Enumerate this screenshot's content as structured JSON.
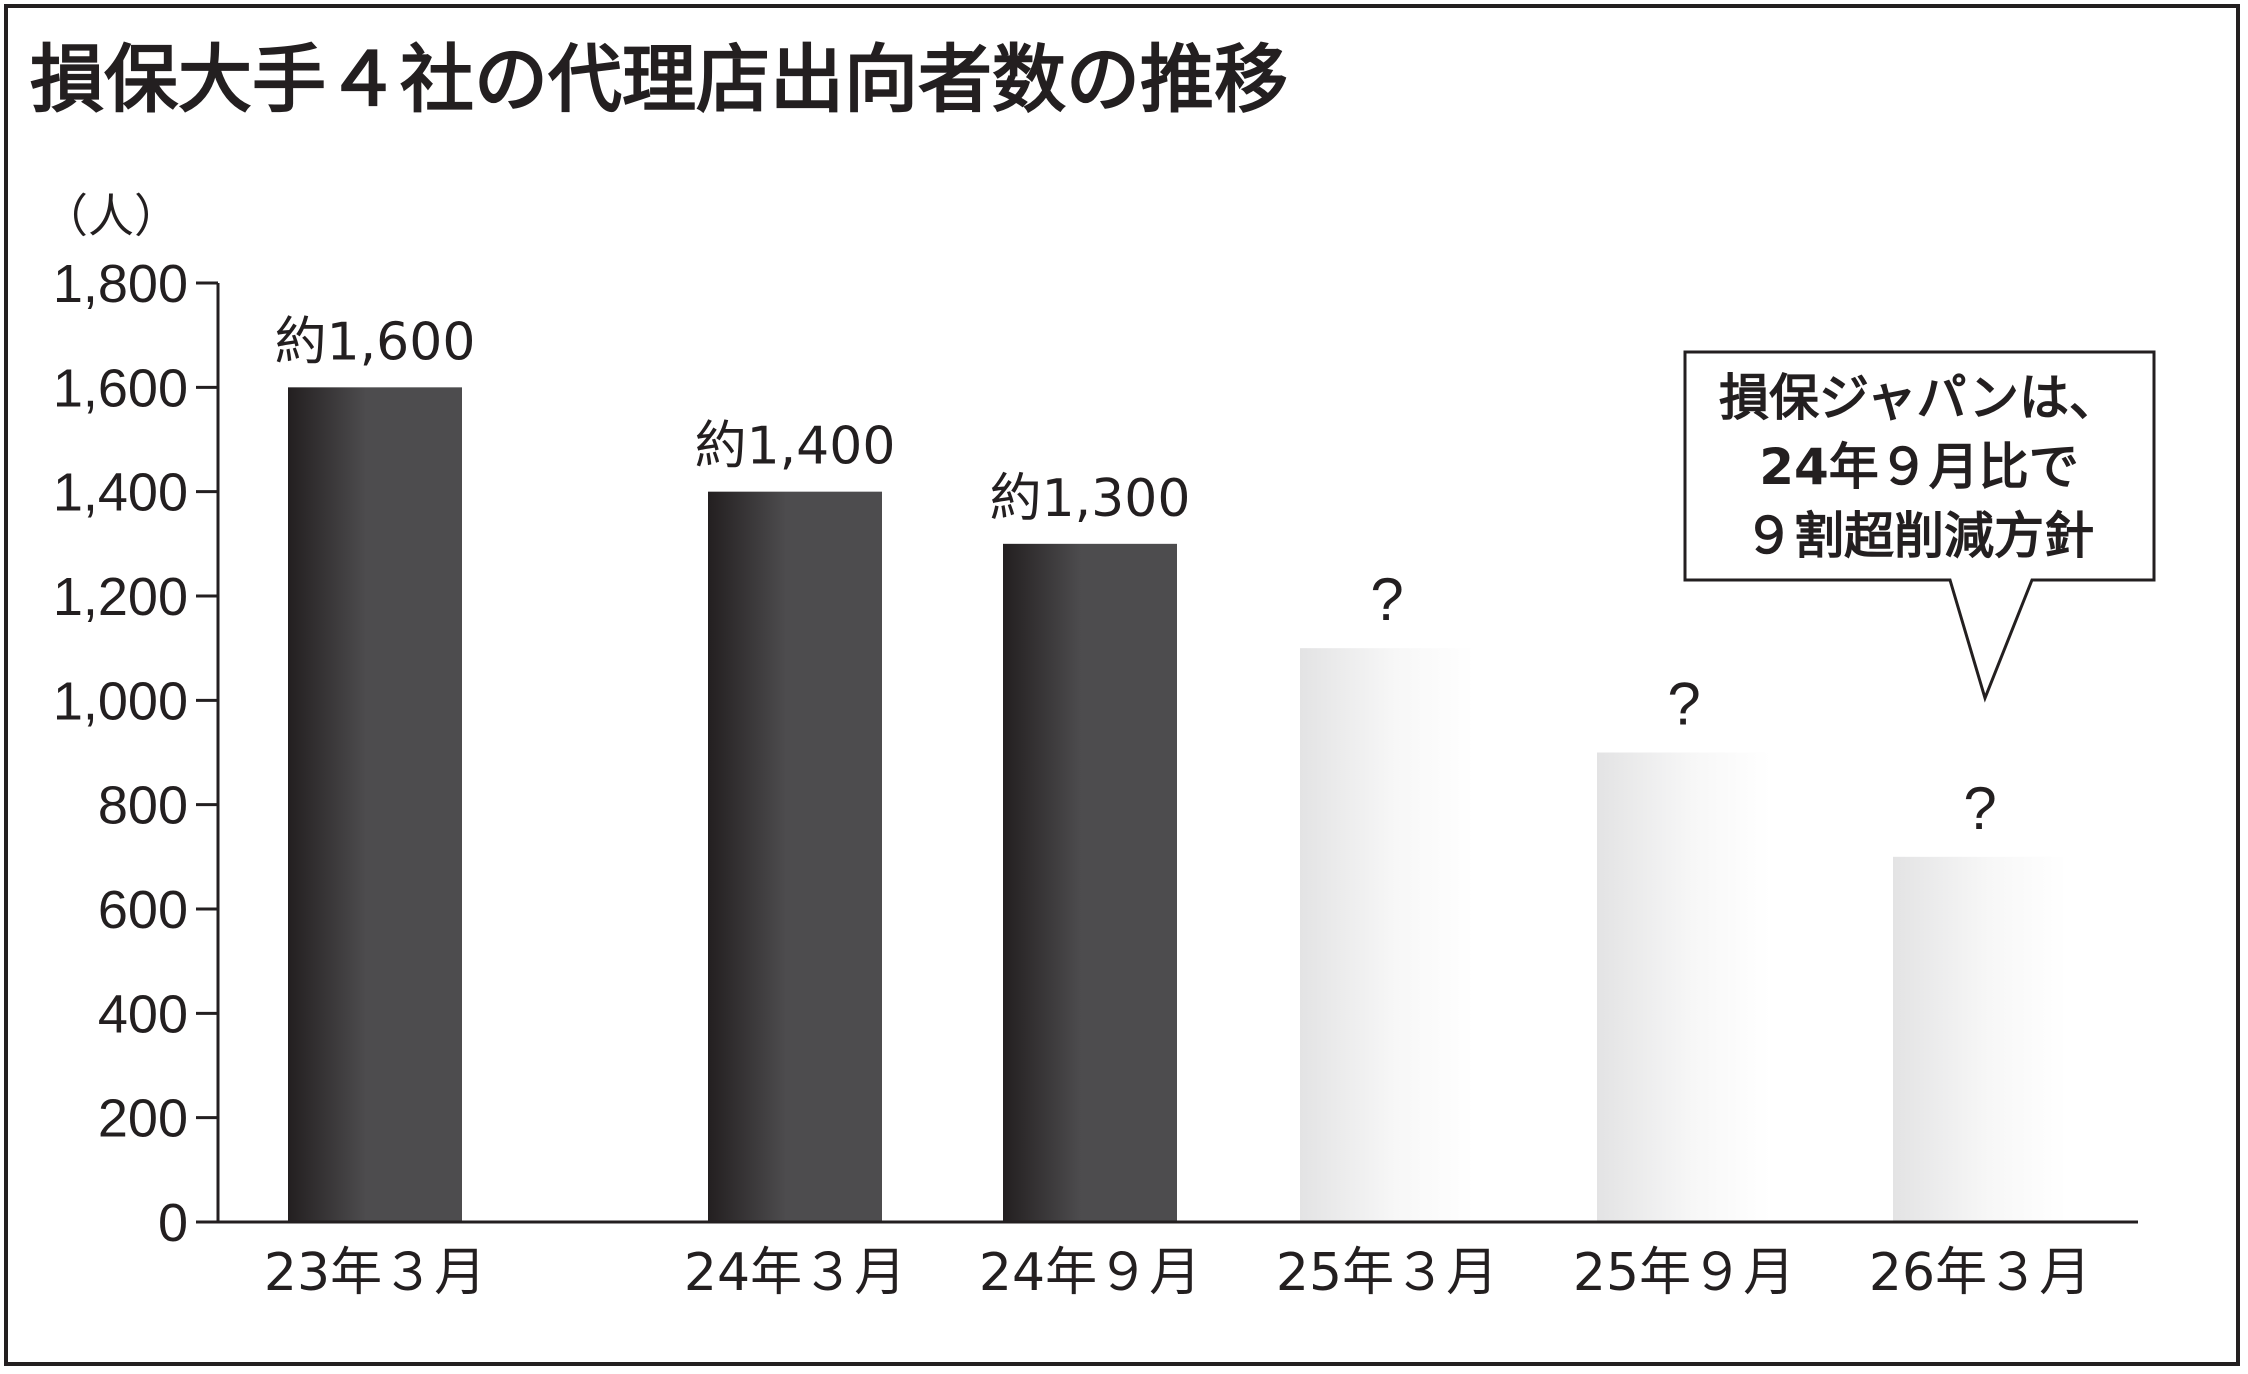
{
  "chart_data": {
    "type": "bar",
    "title": "損保大手４社の代理店出向者数の推移",
    "unit_label": "（人）",
    "categories": [
      "23年３月",
      "24年３月",
      "24年９月",
      "25年３月",
      "25年９月",
      "26年３月"
    ],
    "values": [
      1600,
      1400,
      1300,
      1100,
      900,
      700
    ],
    "value_labels": [
      "約1,600",
      "約1,400",
      "約1,300",
      "?",
      "?",
      "?"
    ],
    "projected": [
      false,
      false,
      false,
      true,
      true,
      true
    ],
    "ylim": [
      0,
      1800
    ],
    "yticks": [
      0,
      200,
      400,
      600,
      800,
      1000,
      1200,
      1400,
      1600,
      1800
    ],
    "ytick_labels": [
      "0",
      "200",
      "400",
      "600",
      "800",
      "1,000",
      "1,200",
      "1,400",
      "1,600",
      "1,800"
    ],
    "grid": false,
    "annotation": {
      "lines": [
        "損保ジャパンは、",
        "24年９月比で",
        "９割超削減方針"
      ],
      "points_to_category": "26年３月"
    },
    "colors": {
      "actual_bar_dark": "#231f20",
      "actual_bar_light": "#4d4c4e",
      "projected_bar_light": "#ffffff",
      "projected_bar_dark": "#e6e6e6",
      "ink": "#231f20"
    }
  }
}
